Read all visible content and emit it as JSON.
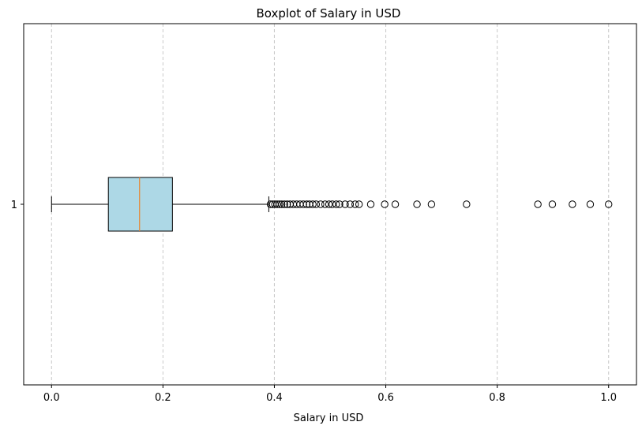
{
  "chart_data": {
    "type": "boxplot",
    "orientation": "horizontal",
    "title": "Boxplot of Salary in USD",
    "xlabel": "Salary in USD",
    "ylabel": "",
    "xlim": [
      -0.05,
      1.05
    ],
    "x_ticks": [
      0.0,
      0.2,
      0.4,
      0.6,
      0.8,
      1.0
    ],
    "x_tick_labels": [
      "0.0",
      "0.2",
      "0.4",
      "0.6",
      "0.8",
      "1.0"
    ],
    "y_tick_labels": [
      "1"
    ],
    "grid": {
      "x": true,
      "y": false,
      "style": "dashed"
    },
    "colors": {
      "box_fill": "#add8e6",
      "box_edge": "#000000",
      "median": "#e8842f",
      "grid": "#c8c8c8"
    },
    "series": [
      {
        "category": "1",
        "whisker_low": 0.0,
        "q1": 0.102,
        "median": 0.158,
        "q3": 0.217,
        "whisker_high": 0.39,
        "outliers": [
          0.393,
          0.397,
          0.401,
          0.405,
          0.409,
          0.413,
          0.418,
          0.423,
          0.428,
          0.434,
          0.44,
          0.446,
          0.452,
          0.458,
          0.463,
          0.469,
          0.475,
          0.483,
          0.491,
          0.498,
          0.504,
          0.511,
          0.517,
          0.527,
          0.536,
          0.545,
          0.552,
          0.573,
          0.598,
          0.617,
          0.656,
          0.682,
          0.745,
          0.873,
          0.899,
          0.935,
          0.967,
          1.0
        ]
      }
    ]
  }
}
